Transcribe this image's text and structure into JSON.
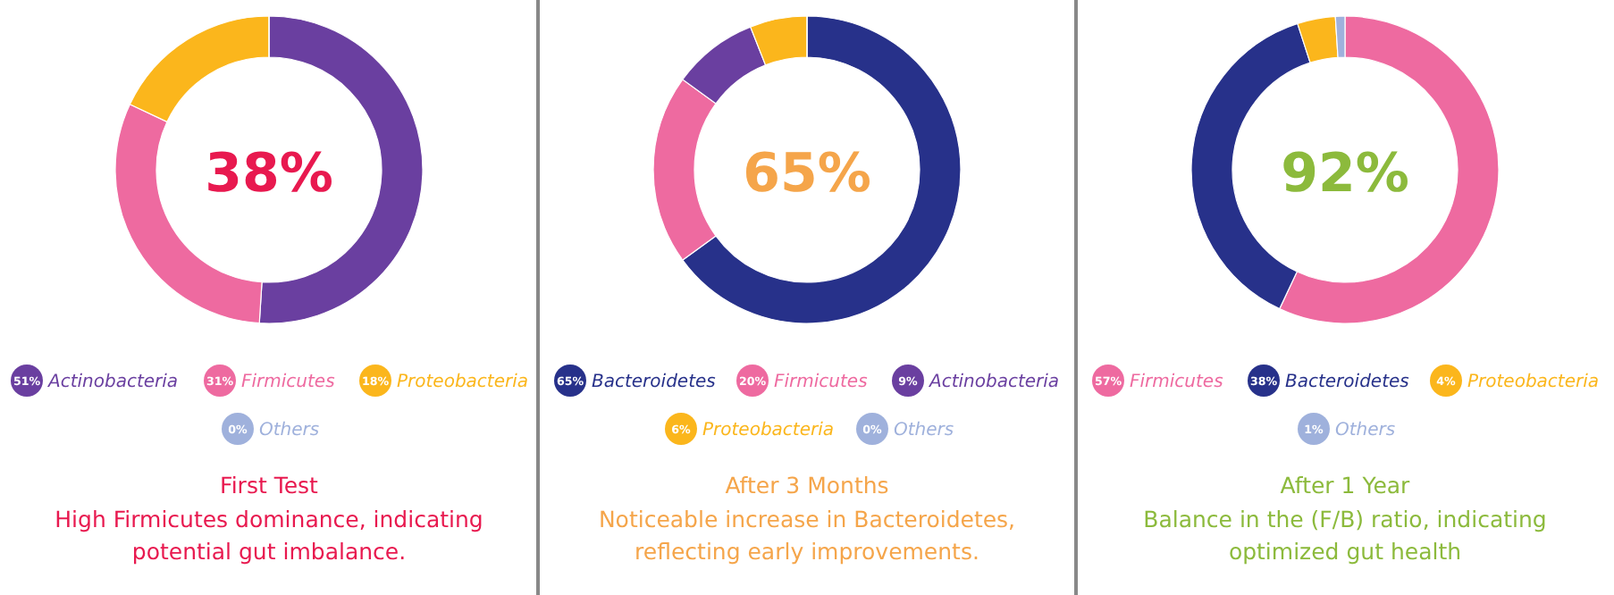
{
  "chart_data": [
    {
      "type": "donut",
      "title": "First Test",
      "subtitle": "High Firmicutes dominance, indicating potential gut imbalance.",
      "annotations": [
        "38%"
      ],
      "legend": "bottom",
      "categories": [
        "Actinobacteria",
        "Firmicutes",
        "Proteobacteria",
        "Others"
      ],
      "values": [
        51,
        31,
        18,
        0
      ],
      "value_labels": [
        "51%",
        "31%",
        "18%",
        "0%"
      ],
      "colors": [
        "#6a3fa0",
        "#ee6aa0",
        "#fbb61c",
        "#9fb1dc"
      ]
    },
    {
      "type": "donut",
      "title": "After 3 Months",
      "subtitle": "Noticeable increase in Bacteroidetes, reflecting early improvements.",
      "annotations": [
        "65%"
      ],
      "legend": "bottom",
      "categories": [
        "Bacteroidetes",
        "Firmicutes",
        "Actinobacteria",
        "Proteobacteria",
        "Others"
      ],
      "values": [
        65,
        20,
        9,
        6,
        0
      ],
      "value_labels": [
        "65%",
        "20%",
        "9%",
        "6%",
        "0%"
      ],
      "colors": [
        "#27318a",
        "#ee6aa0",
        "#6a3fa0",
        "#fbb61c",
        "#9fb1dc"
      ]
    },
    {
      "type": "donut",
      "title": "After 1 Year",
      "subtitle": "Balance in the (F/B) ratio, indicating optimized gut health",
      "annotations": [
        "92%"
      ],
      "legend": "bottom",
      "categories": [
        "Firmicutes",
        "Bacteroidetes",
        "Proteobacteria",
        "Others"
      ],
      "values": [
        57,
        38,
        4,
        1
      ],
      "value_labels": [
        "57%",
        "38%",
        "4%",
        "1%"
      ],
      "colors": [
        "#ee6aa0",
        "#27318a",
        "#fbb61c",
        "#9fb1dc"
      ]
    }
  ]
}
